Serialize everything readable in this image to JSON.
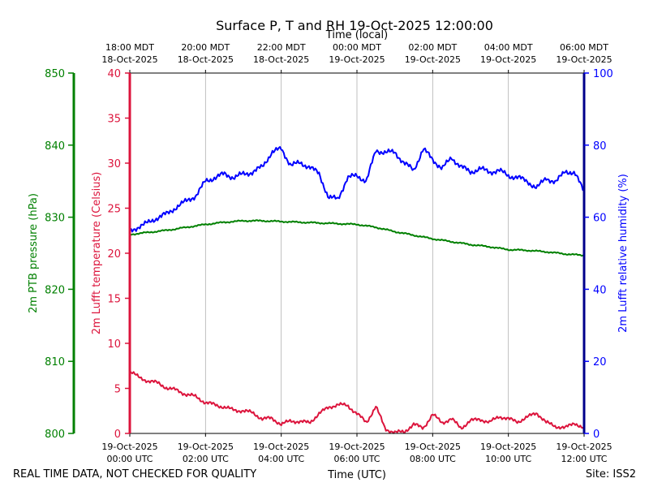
{
  "chart_data": {
    "type": "line",
    "title": "Surface P, T and RH 19-Oct-2025 12:00:00",
    "xlabel_bottom": "Time (UTC)",
    "xlabel_top": "Time (local)",
    "x_range_hours": [
      0,
      12
    ],
    "x_ticks_bottom": [
      {
        "h": 0,
        "l1": "19-Oct-2025",
        "l2": "00:00 UTC"
      },
      {
        "h": 2,
        "l1": "19-Oct-2025",
        "l2": "02:00 UTC"
      },
      {
        "h": 4,
        "l1": "19-Oct-2025",
        "l2": "04:00 UTC"
      },
      {
        "h": 6,
        "l1": "19-Oct-2025",
        "l2": "06:00 UTC"
      },
      {
        "h": 8,
        "l1": "19-Oct-2025",
        "l2": "08:00 UTC"
      },
      {
        "h": 10,
        "l1": "19-Oct-2025",
        "l2": "10:00 UTC"
      },
      {
        "h": 12,
        "l1": "19-Oct-2025",
        "l2": "12:00 UTC"
      }
    ],
    "x_ticks_top": [
      {
        "h": 0,
        "l1": "18:00 MDT",
        "l2": "18-Oct-2025"
      },
      {
        "h": 2,
        "l1": "20:00 MDT",
        "l2": "18-Oct-2025"
      },
      {
        "h": 4,
        "l1": "22:00 MDT",
        "l2": "18-Oct-2025"
      },
      {
        "h": 6,
        "l1": "00:00 MDT",
        "l2": "19-Oct-2025"
      },
      {
        "h": 8,
        "l1": "02:00 MDT",
        "l2": "19-Oct-2025"
      },
      {
        "h": 10,
        "l1": "04:00 MDT",
        "l2": "19-Oct-2025"
      },
      {
        "h": 12,
        "l1": "06:00 MDT",
        "l2": "19-Oct-2025"
      }
    ],
    "axes": {
      "pressure": {
        "label": "2m PTB pressure (hPa)",
        "range": [
          800,
          850
        ],
        "ticks": [
          800,
          810,
          820,
          830,
          840,
          850
        ],
        "color": "#008000"
      },
      "temperature": {
        "label": "2m Lufft temperature (Celsius)",
        "range": [
          0,
          40
        ],
        "ticks": [
          0,
          5,
          10,
          15,
          20,
          25,
          30,
          35,
          40
        ],
        "color": "#dc143c"
      },
      "humidity": {
        "label": "2m Lufft relative humidity (%)",
        "range": [
          0,
          100
        ],
        "ticks": [
          0,
          20,
          40,
          60,
          80,
          100
        ],
        "color": "#0000ff"
      }
    },
    "series": [
      {
        "name": "2m PTB pressure",
        "axis": "pressure",
        "color": "#008000",
        "x": [
          0,
          0.5,
          1,
          1.5,
          2,
          2.5,
          3,
          3.5,
          4,
          4.5,
          5,
          5.5,
          6,
          6.5,
          7,
          7.5,
          8,
          8.5,
          9,
          9.5,
          10,
          10.5,
          11,
          11.5,
          12
        ],
        "y": [
          827.6,
          827.9,
          828.2,
          828.6,
          829.0,
          829.3,
          829.5,
          829.5,
          829.4,
          829.3,
          829.2,
          829.1,
          829.0,
          828.6,
          828.0,
          827.5,
          827.0,
          826.6,
          826.2,
          825.9,
          825.5,
          825.4,
          825.2,
          824.9,
          824.7
        ]
      },
      {
        "name": "2m Lufft temperature",
        "axis": "temperature",
        "color": "#dc143c",
        "x": [
          0,
          0.25,
          0.5,
          0.75,
          1,
          1.25,
          1.5,
          1.75,
          2,
          2.25,
          2.5,
          2.75,
          3,
          3.25,
          3.5,
          3.75,
          4,
          4.25,
          4.5,
          4.75,
          5,
          5.25,
          5.5,
          5.75,
          6,
          6.25,
          6.5,
          6.75,
          7,
          7.25,
          7.5,
          7.75,
          8,
          8.25,
          8.5,
          8.75,
          9,
          9.25,
          9.5,
          9.75,
          10,
          10.25,
          10.5,
          10.75,
          11,
          11.25,
          11.5,
          11.75,
          12
        ],
        "y": [
          6.9,
          6.2,
          5.8,
          5.6,
          5.0,
          4.8,
          4.3,
          4.1,
          3.4,
          3.2,
          2.9,
          2.6,
          2.5,
          2.3,
          1.6,
          1.7,
          1.0,
          1.4,
          1.3,
          1.2,
          2.2,
          2.9,
          3.2,
          3.1,
          2.2,
          1.2,
          3.0,
          0.5,
          0.1,
          0.2,
          1.0,
          0.6,
          2.1,
          1.2,
          1.6,
          0.6,
          1.4,
          1.6,
          1.2,
          1.9,
          1.6,
          1.3,
          1.8,
          2.3,
          1.2,
          0.8,
          0.6,
          1.2,
          0.5
        ]
      },
      {
        "name": "2m Lufft relative humidity",
        "axis": "humidity",
        "color": "#0000ff",
        "x": [
          0,
          0.25,
          0.5,
          0.75,
          1,
          1.25,
          1.5,
          1.75,
          2,
          2.25,
          2.5,
          2.75,
          3,
          3.25,
          3.5,
          3.75,
          4,
          4.25,
          4.5,
          4.75,
          5,
          5.25,
          5.5,
          5.75,
          6,
          6.25,
          6.5,
          6.75,
          7,
          7.25,
          7.5,
          7.75,
          8,
          8.25,
          8.5,
          8.75,
          9,
          9.25,
          9.5,
          9.75,
          10,
          10.25,
          10.5,
          10.75,
          11,
          11.25,
          11.5,
          11.75,
          12
        ],
        "y": [
          56,
          57.5,
          58.5,
          60,
          61,
          63,
          64.5,
          66,
          70,
          71,
          72,
          71,
          72,
          72.5,
          74,
          78,
          79,
          74.5,
          75,
          74,
          72,
          65.5,
          65,
          71,
          71.5,
          70,
          78.5,
          78,
          78,
          75,
          73,
          79,
          76,
          73.5,
          76.5,
          74,
          72.5,
          73.5,
          72.5,
          73,
          71.5,
          71,
          70,
          68,
          71,
          69.5,
          73,
          72,
          67.5
        ]
      }
    ],
    "footer_left": "REAL TIME DATA, NOT CHECKED FOR QUALITY",
    "footer_right": "Site: ISS2"
  }
}
